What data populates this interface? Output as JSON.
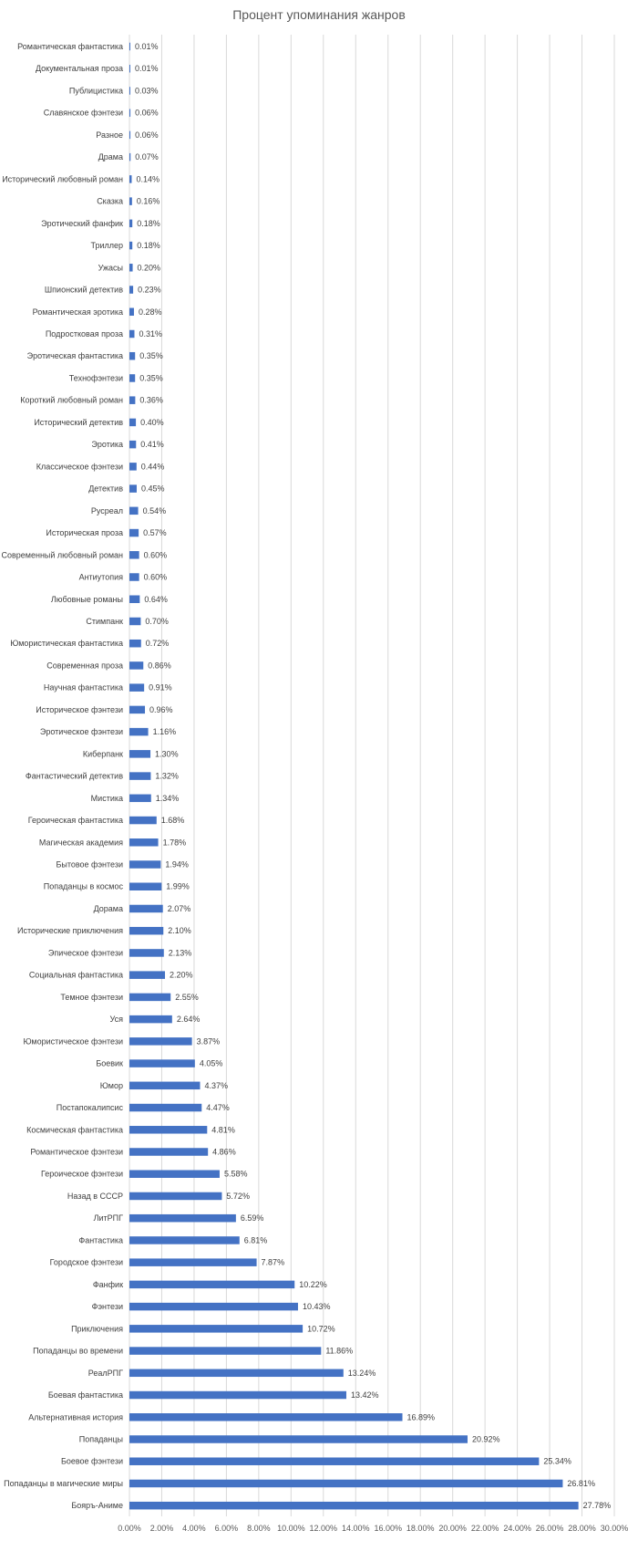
{
  "chart_data": {
    "type": "bar",
    "orientation": "horizontal",
    "title": "Процент упоминания жанров",
    "xlabel": "",
    "ylabel": "",
    "xlim": [
      0,
      30
    ],
    "grid": true,
    "bar_color": "#4472c4",
    "x_ticks": [
      "0.00%",
      "2.00%",
      "4.00%",
      "6.00%",
      "8.00%",
      "10.00%",
      "12.00%",
      "14.00%",
      "16.00%",
      "18.00%",
      "20.00%",
      "22.00%",
      "24.00%",
      "26.00%",
      "28.00%",
      "30.00%"
    ],
    "categories": [
      "Романтическая фантастика",
      "Документальная проза",
      "Публицистика",
      "Славянское фэнтези",
      "Разное",
      "Драма",
      "Исторический любовный роман",
      "Сказка",
      "Эротический фанфик",
      "Триллер",
      "Ужасы",
      "Шпионский детектив",
      "Романтическая эротика",
      "Подростковая проза",
      "Эротическая фантастика",
      "Технофэнтези",
      "Короткий любовный роман",
      "Исторический детектив",
      "Эротика",
      "Классическое фэнтези",
      "Детектив",
      "Русреал",
      "Историческая проза",
      "Современный любовный роман",
      "Антиутопия",
      "Любовные романы",
      "Стимпанк",
      "Юмористическая фантастика",
      "Современная проза",
      "Научная фантастика",
      "Историческое фэнтези",
      "Эротическое фэнтези",
      "Киберпанк",
      "Фантастический детектив",
      "Мистика",
      "Героическая фантастика",
      "Магическая академия",
      "Бытовое фэнтези",
      "Попаданцы в космос",
      "Дорама",
      "Исторические приключения",
      "Эпическое фэнтези",
      "Социальная фантастика",
      "Темное фэнтези",
      "Уся",
      "Юмористическое фэнтези",
      "Боевик",
      "Юмор",
      "Постапокалипсис",
      "Космическая фантастика",
      "Романтическое фэнтези",
      "Героическое фэнтези",
      "Назад в СССР",
      "ЛитРПГ",
      "Фантастика",
      "Городское фэнтези",
      "Фанфик",
      "Фэнтези",
      "Приключения",
      "Попаданцы во времени",
      "РеалРПГ",
      "Боевая фантастика",
      "Альтернативная история",
      "Попаданцы",
      "Боевое фэнтези",
      "Попаданцы в магические миры",
      "Бояръ-Аниме"
    ],
    "values": [
      0.01,
      0.01,
      0.03,
      0.06,
      0.06,
      0.07,
      0.14,
      0.16,
      0.18,
      0.18,
      0.2,
      0.23,
      0.28,
      0.31,
      0.35,
      0.35,
      0.36,
      0.4,
      0.41,
      0.44,
      0.45,
      0.54,
      0.57,
      0.6,
      0.6,
      0.64,
      0.7,
      0.72,
      0.86,
      0.91,
      0.96,
      1.16,
      1.3,
      1.32,
      1.34,
      1.68,
      1.78,
      1.94,
      1.99,
      2.07,
      2.1,
      2.13,
      2.2,
      2.55,
      2.64,
      3.87,
      4.05,
      4.37,
      4.47,
      4.81,
      4.86,
      5.58,
      5.72,
      6.59,
      6.81,
      7.87,
      10.22,
      10.43,
      10.72,
      11.86,
      13.24,
      13.42,
      16.89,
      20.92,
      25.34,
      26.81,
      27.78
    ],
    "value_labels": [
      "0.01%",
      "0.01%",
      "0.03%",
      "0.06%",
      "0.06%",
      "0.07%",
      "0.14%",
      "0.16%",
      "0.18%",
      "0.18%",
      "0.20%",
      "0.23%",
      "0.28%",
      "0.31%",
      "0.35%",
      "0.35%",
      "0.36%",
      "0.40%",
      "0.41%",
      "0.44%",
      "0.45%",
      "0.54%",
      "0.57%",
      "0.60%",
      "0.60%",
      "0.64%",
      "0.70%",
      "0.72%",
      "0.86%",
      "0.91%",
      "0.96%",
      "1.16%",
      "1.30%",
      "1.32%",
      "1.34%",
      "1.68%",
      "1.78%",
      "1.94%",
      "1.99%",
      "2.07%",
      "2.10%",
      "2.13%",
      "2.20%",
      "2.55%",
      "2.64%",
      "3.87%",
      "4.05%",
      "4.37%",
      "4.47%",
      "4.81%",
      "4.86%",
      "5.58%",
      "5.72%",
      "6.59%",
      "6.81%",
      "7.87%",
      "10.22%",
      "10.43%",
      "10.72%",
      "11.86%",
      "13.24%",
      "13.42%",
      "16.89%",
      "20.92%",
      "25.34%",
      "26.81%",
      "27.78%"
    ]
  }
}
